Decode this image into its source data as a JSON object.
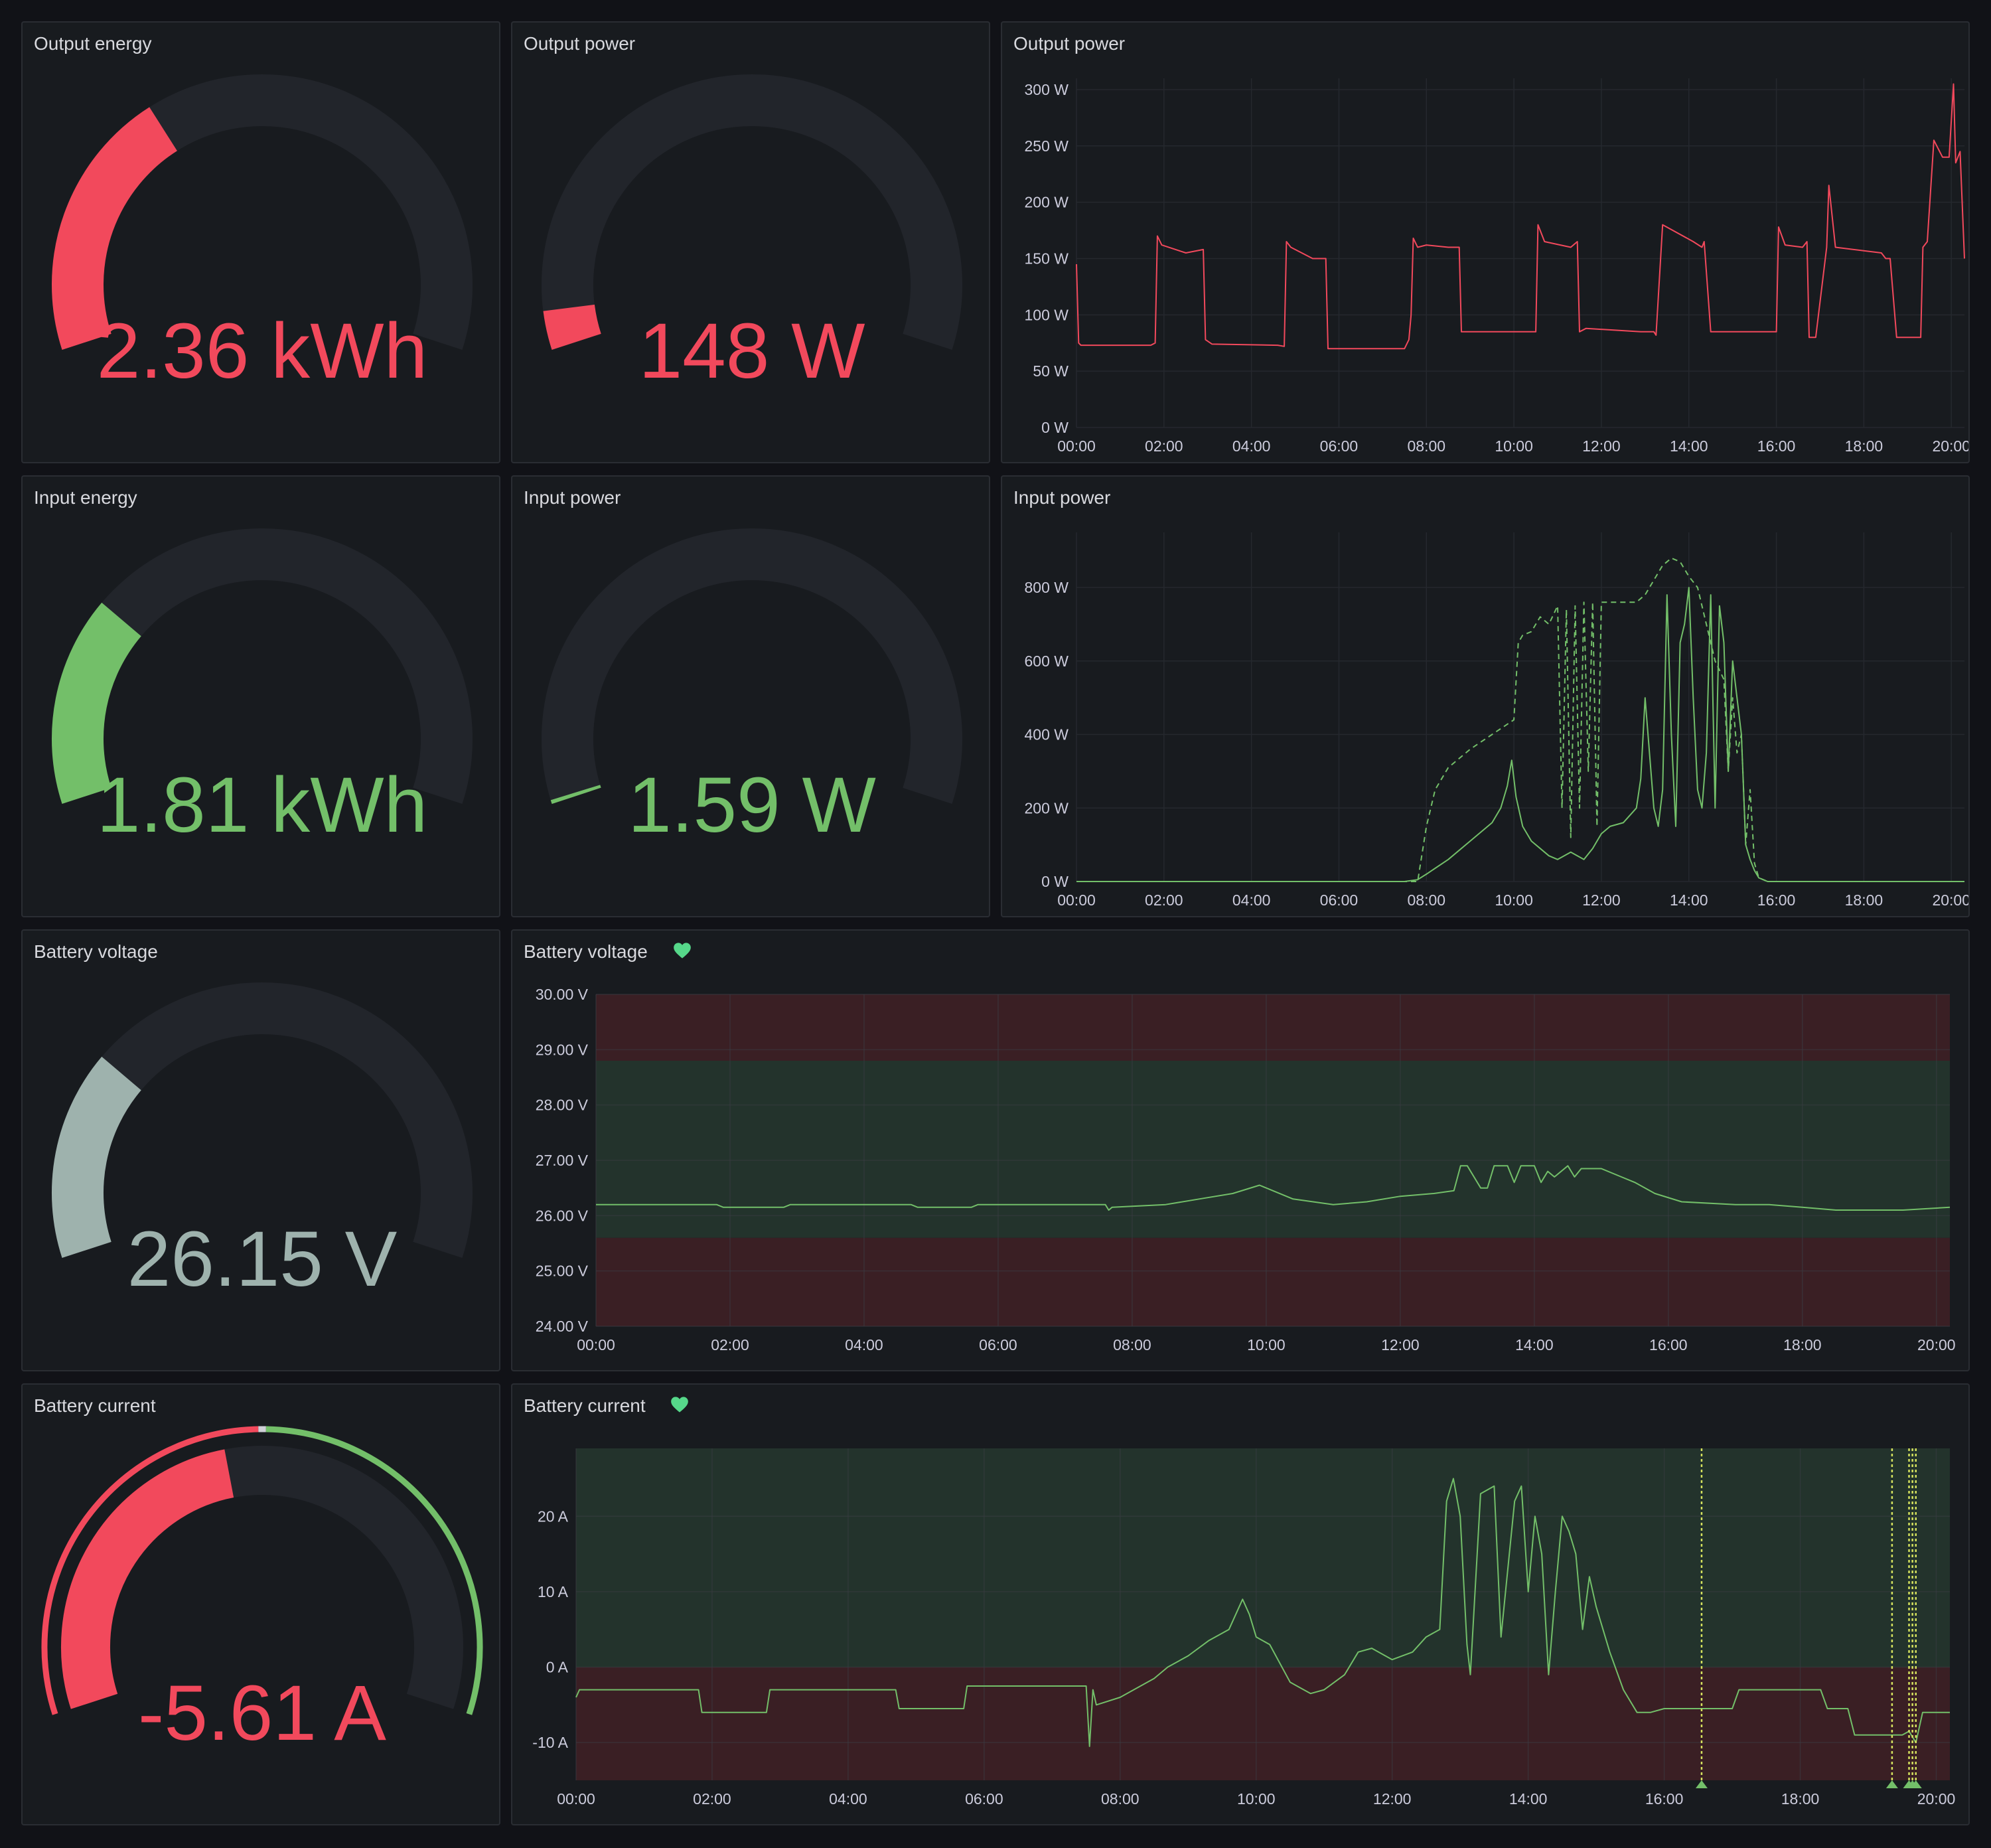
{
  "colors": {
    "red": "#f2495c",
    "green": "#73bf69",
    "gray": "#9eb2ad",
    "yellow": "#d5e25e",
    "track": "#22252b",
    "grid": "#25282e",
    "zone_red": "#3a1f24",
    "zone_green": "#23332c"
  },
  "panels": {
    "output_energy": {
      "title": "Output energy",
      "value": "2.36 kWh",
      "fraction": 0.35,
      "color": "red"
    },
    "output_power_gauge": {
      "title": "Output power",
      "value": "148 W",
      "fraction": 0.05,
      "color": "red"
    },
    "input_energy": {
      "title": "Input energy",
      "value": "1.81 kWh",
      "fraction": 0.27,
      "color": "green"
    },
    "input_power_gauge": {
      "title": "Input power",
      "value": "1.59 W",
      "fraction": 0.002,
      "color": "green"
    },
    "battery_voltage_gauge": {
      "title": "Battery voltage",
      "value": "26.15 V",
      "fraction": 0.27,
      "color": "gray"
    },
    "battery_current_gauge": {
      "title": "Battery current",
      "value": "-5.61 A",
      "fraction": 0.45,
      "color": "red",
      "threshold_fraction": 0.5
    },
    "output_power_chart": {
      "title": "Output power"
    },
    "input_power_chart": {
      "title": "Input power"
    },
    "battery_voltage_chart": {
      "title": "Battery voltage",
      "icon": "heart-icon"
    },
    "battery_current_chart": {
      "title": "Battery current",
      "icon": "heart-icon"
    }
  },
  "chart_data": [
    {
      "id": "output_power_chart",
      "type": "line",
      "xlim": [
        0,
        20.3
      ],
      "ylim": [
        0,
        310
      ],
      "x_ticks": [
        "00:00",
        "02:00",
        "04:00",
        "06:00",
        "08:00",
        "10:00",
        "12:00",
        "14:00",
        "16:00",
        "18:00",
        "20:00"
      ],
      "y_ticks": [
        0,
        50,
        100,
        150,
        200,
        250,
        300
      ],
      "y_tick_labels": [
        "0 W",
        "50 W",
        "100 W",
        "150 W",
        "200 W",
        "250 W",
        "300 W"
      ],
      "grid": true,
      "series": [
        {
          "color": "red",
          "dashed": false,
          "x": [
            0,
            0.05,
            0.1,
            1.7,
            1.8,
            1.85,
            1.95,
            2.5,
            2.9,
            2.95,
            3.1,
            4.6,
            4.75,
            4.8,
            4.9,
            5.4,
            5.7,
            5.75,
            6.0,
            7.5,
            7.6,
            7.65,
            7.7,
            7.8,
            8.0,
            8.5,
            8.75,
            8.8,
            8.9,
            10.3,
            10.5,
            10.55,
            10.7,
            11.3,
            11.45,
            11.5,
            11.65,
            12.9,
            13.2,
            13.25,
            13.4,
            14.1,
            14.3,
            14.35,
            14.5,
            15.8,
            16.0,
            16.05,
            16.2,
            16.6,
            16.7,
            16.75,
            16.9,
            17.15,
            17.2,
            17.35,
            18.4,
            18.5,
            18.6,
            18.75,
            18.8,
            19.3,
            19.35,
            19.45,
            19.6,
            19.8,
            19.95,
            20.05,
            20.1,
            20.2,
            20.3
          ],
          "y": [
            145,
            75,
            73,
            73,
            75,
            170,
            162,
            155,
            158,
            78,
            74,
            73,
            72,
            165,
            160,
            150,
            150,
            70,
            70,
            70,
            78,
            100,
            168,
            160,
            162,
            160,
            160,
            85,
            85,
            85,
            85,
            180,
            165,
            160,
            165,
            85,
            88,
            85,
            85,
            82,
            180,
            165,
            160,
            165,
            85,
            85,
            85,
            178,
            162,
            160,
            165,
            80,
            80,
            160,
            215,
            160,
            155,
            150,
            150,
            80,
            80,
            80,
            160,
            165,
            255,
            240,
            240,
            305,
            235,
            245,
            150
          ]
        }
      ]
    },
    {
      "id": "input_power_chart",
      "type": "line",
      "xlim": [
        0,
        20.3
      ],
      "ylim": [
        0,
        950
      ],
      "x_ticks": [
        "00:00",
        "02:00",
        "04:00",
        "06:00",
        "08:00",
        "10:00",
        "12:00",
        "14:00",
        "16:00",
        "18:00",
        "20:00"
      ],
      "y_ticks": [
        0,
        200,
        400,
        600,
        800
      ],
      "y_tick_labels": [
        "0 W",
        "200 W",
        "400 W",
        "600 W",
        "800 W"
      ],
      "grid": true,
      "series": [
        {
          "color": "green",
          "dashed": false,
          "x": [
            0,
            7.5,
            7.8,
            8.0,
            8.5,
            9.0,
            9.5,
            9.7,
            9.85,
            9.95,
            10.05,
            10.2,
            10.4,
            10.6,
            10.8,
            11.0,
            11.3,
            11.6,
            11.8,
            12.0,
            12.2,
            12.5,
            12.8,
            12.9,
            13.0,
            13.2,
            13.3,
            13.4,
            13.5,
            13.6,
            13.7,
            13.8,
            13.9,
            14.0,
            14.1,
            14.2,
            14.3,
            14.4,
            14.5,
            14.6,
            14.7,
            14.8,
            14.9,
            15.0,
            15.1,
            15.2,
            15.3,
            15.4,
            15.5,
            15.6,
            15.7,
            15.8,
            16.0,
            17.0,
            18.0,
            20.3
          ],
          "y": [
            0,
            0,
            5,
            20,
            60,
            110,
            160,
            200,
            260,
            330,
            230,
            150,
            110,
            90,
            70,
            60,
            80,
            60,
            90,
            130,
            150,
            160,
            200,
            280,
            500,
            200,
            150,
            250,
            780,
            400,
            150,
            650,
            700,
            800,
            500,
            250,
            200,
            350,
            780,
            200,
            750,
            650,
            300,
            600,
            500,
            400,
            100,
            60,
            30,
            10,
            5,
            0,
            0,
            0,
            0,
            0
          ]
        },
        {
          "color": "green",
          "dashed": true,
          "x": [
            0,
            7.8,
            8.0,
            8.2,
            8.5,
            9.0,
            9.5,
            10.0,
            10.1,
            10.2,
            10.4,
            10.6,
            10.8,
            11.0,
            11.1,
            11.2,
            11.3,
            11.4,
            11.5,
            11.6,
            11.7,
            11.8,
            11.9,
            12.0,
            12.2,
            12.5,
            12.8,
            13.0,
            13.2,
            13.4,
            13.6,
            13.8,
            14.0,
            14.2,
            14.4,
            14.6,
            14.8,
            14.9,
            15.0,
            15.1,
            15.2,
            15.3,
            15.4,
            15.5,
            15.6,
            15.8,
            16.0,
            20.3
          ],
          "y": [
            0,
            0,
            150,
            250,
            310,
            360,
            400,
            440,
            650,
            670,
            680,
            720,
            700,
            750,
            200,
            740,
            120,
            750,
            200,
            760,
            300,
            760,
            150,
            760,
            760,
            760,
            760,
            780,
            820,
            860,
            880,
            870,
            830,
            800,
            700,
            600,
            550,
            300,
            500,
            350,
            400,
            100,
            250,
            50,
            10,
            0,
            0,
            0
          ]
        }
      ]
    },
    {
      "id": "battery_voltage_chart",
      "type": "line",
      "xlim": [
        0,
        20.2
      ],
      "ylim": [
        24,
        30
      ],
      "x_ticks": [
        "00:00",
        "02:00",
        "04:00",
        "06:00",
        "08:00",
        "10:00",
        "12:00",
        "14:00",
        "16:00",
        "18:00",
        "20:00"
      ],
      "y_ticks": [
        24,
        25,
        26,
        27,
        28,
        29,
        30
      ],
      "y_tick_labels": [
        "24.00 V",
        "25.00 V",
        "26.00 V",
        "27.00 V",
        "28.00 V",
        "29.00 V",
        "30.00 V"
      ],
      "thresholds": [
        {
          "from": 24,
          "to": 25.6,
          "color": "zone_red"
        },
        {
          "from": 25.6,
          "to": 28.8,
          "color": "zone_green"
        },
        {
          "from": 28.8,
          "to": 30,
          "color": "zone_red"
        }
      ],
      "grid": true,
      "series": [
        {
          "color": "green",
          "dashed": false,
          "x": [
            0,
            1.8,
            1.9,
            2.8,
            2.9,
            4.7,
            4.8,
            5.6,
            5.7,
            7.6,
            7.65,
            7.7,
            8.5,
            9.0,
            9.5,
            9.9,
            10.1,
            10.4,
            11.0,
            11.5,
            12.0,
            12.5,
            12.8,
            12.9,
            13.0,
            13.2,
            13.3,
            13.4,
            13.6,
            13.7,
            13.8,
            14.0,
            14.1,
            14.2,
            14.3,
            14.5,
            14.6,
            14.7,
            15.0,
            15.3,
            15.5,
            15.8,
            16.2,
            17.0,
            17.5,
            18.0,
            18.5,
            19.0,
            19.5,
            20.2
          ],
          "y": [
            26.2,
            26.2,
            26.15,
            26.15,
            26.2,
            26.2,
            26.15,
            26.15,
            26.2,
            26.2,
            26.1,
            26.15,
            26.2,
            26.3,
            26.4,
            26.55,
            26.45,
            26.3,
            26.2,
            26.25,
            26.35,
            26.4,
            26.45,
            26.9,
            26.9,
            26.5,
            26.5,
            26.9,
            26.9,
            26.6,
            26.9,
            26.9,
            26.6,
            26.8,
            26.7,
            26.9,
            26.7,
            26.85,
            26.85,
            26.7,
            26.6,
            26.4,
            26.25,
            26.2,
            26.2,
            26.15,
            26.1,
            26.1,
            26.1,
            26.15
          ]
        }
      ]
    },
    {
      "id": "battery_current_chart",
      "type": "line",
      "xlim": [
        0,
        20.2
      ],
      "ylim": [
        -15,
        29
      ],
      "x_ticks": [
        "00:00",
        "02:00",
        "04:00",
        "06:00",
        "08:00",
        "10:00",
        "12:00",
        "14:00",
        "16:00",
        "18:00",
        "20:00"
      ],
      "y_ticks": [
        -10,
        0,
        10,
        20
      ],
      "y_tick_labels": [
        "-10 A",
        "0 A",
        "10 A",
        "20 A"
      ],
      "thresholds": [
        {
          "from": -15,
          "to": 0,
          "color": "zone_red"
        },
        {
          "from": 0,
          "to": 29,
          "color": "zone_green"
        }
      ],
      "annotations_x": [
        16.55,
        19.35,
        19.6,
        19.65,
        19.7
      ],
      "grid": true,
      "series": [
        {
          "color": "green",
          "dashed": false,
          "x": [
            0,
            0.05,
            1.8,
            1.85,
            2.8,
            2.85,
            4.7,
            4.75,
            5.7,
            5.75,
            7.5,
            7.55,
            7.6,
            7.65,
            8.0,
            8.5,
            8.7,
            9.0,
            9.3,
            9.6,
            9.8,
            9.9,
            10.0,
            10.2,
            10.5,
            10.8,
            11.0,
            11.3,
            11.5,
            11.7,
            12.0,
            12.3,
            12.5,
            12.7,
            12.8,
            12.9,
            13.0,
            13.1,
            13.15,
            13.3,
            13.5,
            13.6,
            13.8,
            13.9,
            14.0,
            14.1,
            14.2,
            14.3,
            14.4,
            14.5,
            14.6,
            14.7,
            14.8,
            14.9,
            15.0,
            15.2,
            15.4,
            15.6,
            15.8,
            16.0,
            17.0,
            17.1,
            18.3,
            18.4,
            18.7,
            18.8,
            19.0,
            19.5,
            19.6,
            19.7,
            19.8,
            20.2
          ],
          "y": [
            -4,
            -3,
            -3,
            -6,
            -6,
            -3,
            -3,
            -5.5,
            -5.5,
            -2.5,
            -2.5,
            -10.5,
            -3,
            -5,
            -4,
            -1.5,
            0,
            1.5,
            3.5,
            5,
            9,
            7,
            4,
            3,
            -2,
            -3.5,
            -3,
            -1,
            2,
            2.5,
            1,
            2,
            4,
            5,
            22,
            25,
            20,
            3,
            -1,
            23,
            24,
            4,
            22,
            24,
            10,
            20,
            15,
            -1,
            10,
            20,
            18,
            15,
            5,
            12,
            8,
            2,
            -3,
            -6,
            -6,
            -5.5,
            -5.5,
            -3,
            -3,
            -5.5,
            -5.5,
            -9,
            -9,
            -9,
            -8.5,
            -10,
            -6,
            -6
          ]
        }
      ]
    }
  ]
}
